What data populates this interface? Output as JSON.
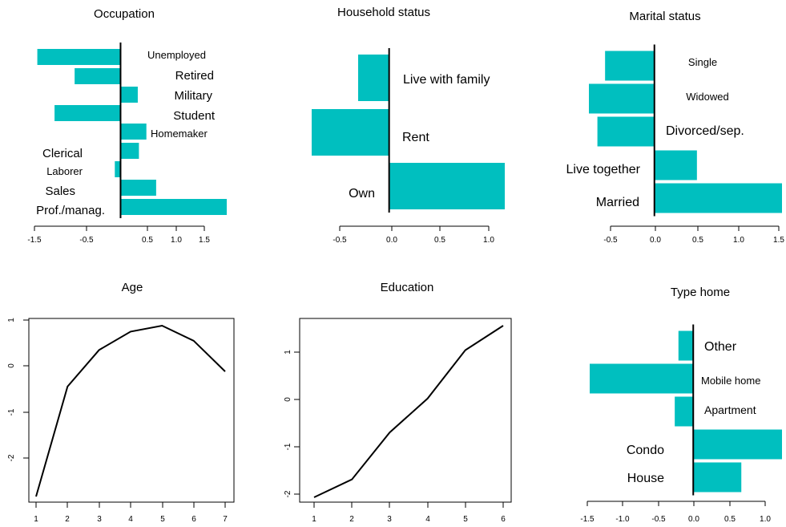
{
  "colors": {
    "bar": "#00BFBF",
    "axis": "#000000",
    "line": "#000000"
  },
  "chart_data": [
    {
      "type": "bar",
      "orientation": "horizontal",
      "title": "Occupation",
      "categories": [
        "Unemployed",
        "Retired",
        "Military",
        "Student",
        "Homemaker",
        "Clerical",
        "Laborer",
        "Sales",
        "Prof./manag."
      ],
      "values": [
        -1.45,
        -0.8,
        0.3,
        -1.15,
        0.45,
        0.32,
        -0.1,
        0.62,
        1.85
      ],
      "xticks": [
        "-1.5",
        "-0.5",
        "0.5",
        "1.0",
        "1.5"
      ],
      "xlim": [
        -1.5,
        1.85
      ]
    },
    {
      "type": "bar",
      "orientation": "horizontal",
      "title": "Household status",
      "categories": [
        "Live with family",
        "Rent",
        "Own"
      ],
      "values": [
        -0.3,
        -0.75,
        1.12
      ],
      "xticks": [
        "-0.5",
        "0.0",
        "0.5",
        "1.0"
      ],
      "xlim": [
        -0.75,
        1.12
      ]
    },
    {
      "type": "bar",
      "orientation": "horizontal",
      "title": "Marital status",
      "categories": [
        "Single",
        "Widowed",
        "Divorced/sep.",
        "Live together",
        "Married"
      ],
      "values": [
        -0.58,
        -0.77,
        -0.67,
        0.5,
        1.5
      ],
      "xticks": [
        "-0.5",
        "0.0",
        "0.5",
        "1.0",
        "1.5"
      ],
      "xlim": [
        -0.77,
        1.5
      ]
    },
    {
      "type": "line",
      "title": "Age",
      "x": [
        1,
        2,
        3,
        4,
        5,
        6,
        7
      ],
      "y": [
        -2.85,
        -0.45,
        0.35,
        0.75,
        0.88,
        0.55,
        -0.12
      ],
      "xticks": [
        "1",
        "2",
        "3",
        "4",
        "5",
        "6",
        "7"
      ],
      "yticks": [
        "-2",
        "-1",
        "0",
        "1"
      ],
      "xlim": [
        1,
        7
      ],
      "ylim": [
        -2.85,
        0.88
      ]
    },
    {
      "type": "line",
      "title": "Education",
      "x": [
        1,
        2,
        3,
        4,
        5,
        6
      ],
      "y": [
        -2.05,
        -1.67,
        -0.67,
        0.05,
        1.08,
        1.6
      ],
      "xticks": [
        "1",
        "2",
        "3",
        "4",
        "5",
        "6"
      ],
      "yticks": [
        "-2",
        "-1",
        "0",
        "1"
      ],
      "xlim": [
        1,
        6
      ],
      "ylim": [
        -2.05,
        1.6
      ]
    },
    {
      "type": "bar",
      "orientation": "horizontal",
      "title": "Type home",
      "categories": [
        "Other",
        "Mobile home",
        "Apartment",
        "Condo",
        "House"
      ],
      "values": [
        -0.2,
        -1.4,
        -0.25,
        1.2,
        0.65
      ],
      "xticks": [
        "-1.5",
        "-1.0",
        "-0.5",
        "0.0",
        "0.5",
        "1.0"
      ],
      "xlim": [
        -1.4,
        1.2
      ]
    }
  ]
}
